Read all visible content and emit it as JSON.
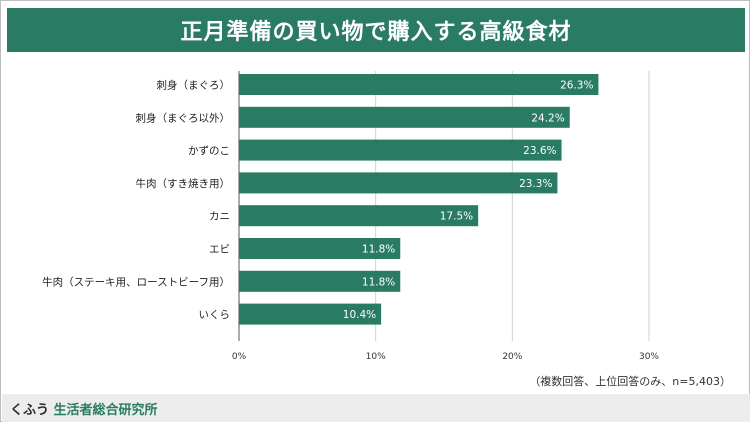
{
  "header": {
    "title": "正月準備の買い物で購入する高級食材"
  },
  "note": "（複数回答、上位回答のみ、n=5,403）",
  "brand": {
    "kana": "くふう",
    "name": "生活者総合研究所"
  },
  "colors": {
    "accent": "#2a7b63",
    "grid": "#d0d0d0",
    "footer_bg": "#ececec"
  },
  "chart_data": {
    "type": "bar",
    "orientation": "horizontal",
    "title": "正月準備の買い物で購入する高級食材",
    "categories": [
      "刺身（まぐろ）",
      "刺身（まぐろ以外）",
      "かずのこ",
      "牛肉（すき焼き用）",
      "カニ",
      "エビ",
      "牛肉（ステーキ用、ローストビーフ用）",
      "いくら"
    ],
    "values": [
      26.3,
      24.2,
      23.6,
      23.3,
      17.5,
      11.8,
      11.8,
      10.4
    ],
    "value_labels": [
      "26.3%",
      "24.2%",
      "23.6%",
      "23.3%",
      "17.5%",
      "11.8%",
      "11.8%",
      "10.4%"
    ],
    "xticks": [
      "0%",
      "10%",
      "20%",
      "30%"
    ],
    "xlim": [
      0,
      30
    ],
    "grid": true,
    "legend": "none",
    "xlabel": "",
    "ylabel": ""
  }
}
